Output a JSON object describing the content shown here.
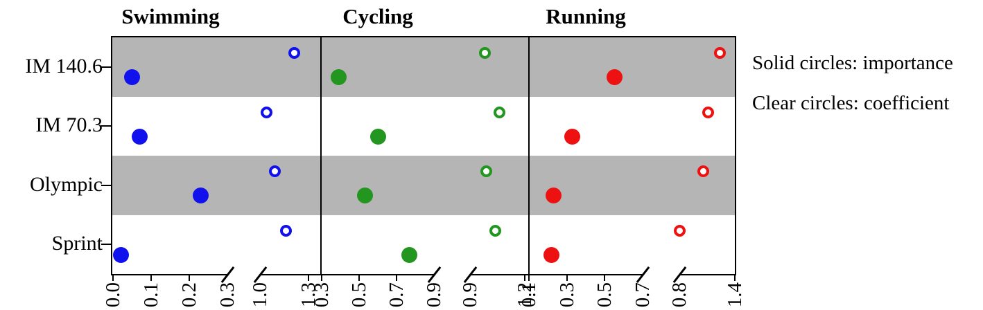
{
  "chart_data": {
    "type": "scatter",
    "layout": "horizontal dot plot, three panels sharing one category y-axis, each panel has a broken x-axis (two segments separated by break marks)",
    "categories": [
      "IM 140.6",
      "IM 70.3",
      "Olympic",
      "Sprint"
    ],
    "category_order": "top to bottom",
    "legend": {
      "solid": "Solid circles: importance",
      "clear": "Clear circles: coefficient",
      "position": "right"
    },
    "colors": {
      "band": "#B5B5B5",
      "axis": "#000000",
      "swimming": "#1111EE",
      "cycling": "#22961F",
      "running": "#EE1111"
    },
    "panels": [
      {
        "title": "Swimming",
        "color": "#1111EE",
        "x_axis": {
          "segment1": {
            "range": [
              0.0,
              0.3
            ],
            "tick_values": [
              0.0,
              0.1,
              0.2,
              0.3
            ],
            "tick_labels": [
              "0.0",
              "0.1",
              "0.2",
              "0.3"
            ],
            "break_at_end": true
          },
          "segment2": {
            "range": [
              1.0,
              1.3
            ],
            "tick_values": [
              1.0,
              1.3
            ],
            "tick_labels": [
              "1.0",
              "1.3"
            ],
            "break_at_start": true
          }
        },
        "series": [
          {
            "name": "importance",
            "marker": "solid",
            "values": [
              0.05,
              0.07,
              0.23,
              0.02
            ]
          },
          {
            "name": "coefficient",
            "marker": "open",
            "values": [
              1.21,
              1.04,
              1.09,
              1.16
            ]
          }
        ]
      },
      {
        "title": "Cycling",
        "color": "#22961F",
        "x_axis": {
          "segment1": {
            "range": [
              0.3,
              0.9
            ],
            "tick_values": [
              0.3,
              0.5,
              0.7,
              0.9
            ],
            "tick_labels": [
              "0.3",
              "0.5",
              "0.7",
              "0.9"
            ],
            "break_at_end": true
          },
          "segment2": {
            "range": [
              0.9,
              1.2
            ],
            "tick_values": [
              0.9,
              1.2
            ],
            "tick_labels": [
              "0.9",
              "1.2"
            ],
            "break_at_start": true
          }
        },
        "series": [
          {
            "name": "importance",
            "marker": "solid",
            "values": [
              0.39,
              0.6,
              0.53,
              0.77
            ]
          },
          {
            "name": "coefficient",
            "marker": "open",
            "values": [
              0.98,
              1.06,
              0.99,
              1.04
            ]
          }
        ]
      },
      {
        "title": "Running",
        "color": "#EE1111",
        "x_axis": {
          "segment1": {
            "range": [
              0.1,
              0.7
            ],
            "tick_values": [
              0.1,
              0.3,
              0.5,
              0.7
            ],
            "tick_labels": [
              "0.1",
              "0.3",
              "0.5",
              "0.7"
            ],
            "break_at_end": true
          },
          "segment2": {
            "range": [
              0.8,
              1.4
            ],
            "tick_values": [
              0.8,
              1.4
            ],
            "tick_labels": [
              "0.8",
              "1.4"
            ],
            "break_at_start": true
          }
        },
        "series": [
          {
            "name": "importance",
            "marker": "solid",
            "values": [
              0.55,
              0.33,
              0.23,
              0.22
            ]
          },
          {
            "name": "coefficient",
            "marker": "open",
            "values": [
              1.24,
              1.11,
              1.06,
              0.8
            ]
          }
        ]
      }
    ]
  }
}
